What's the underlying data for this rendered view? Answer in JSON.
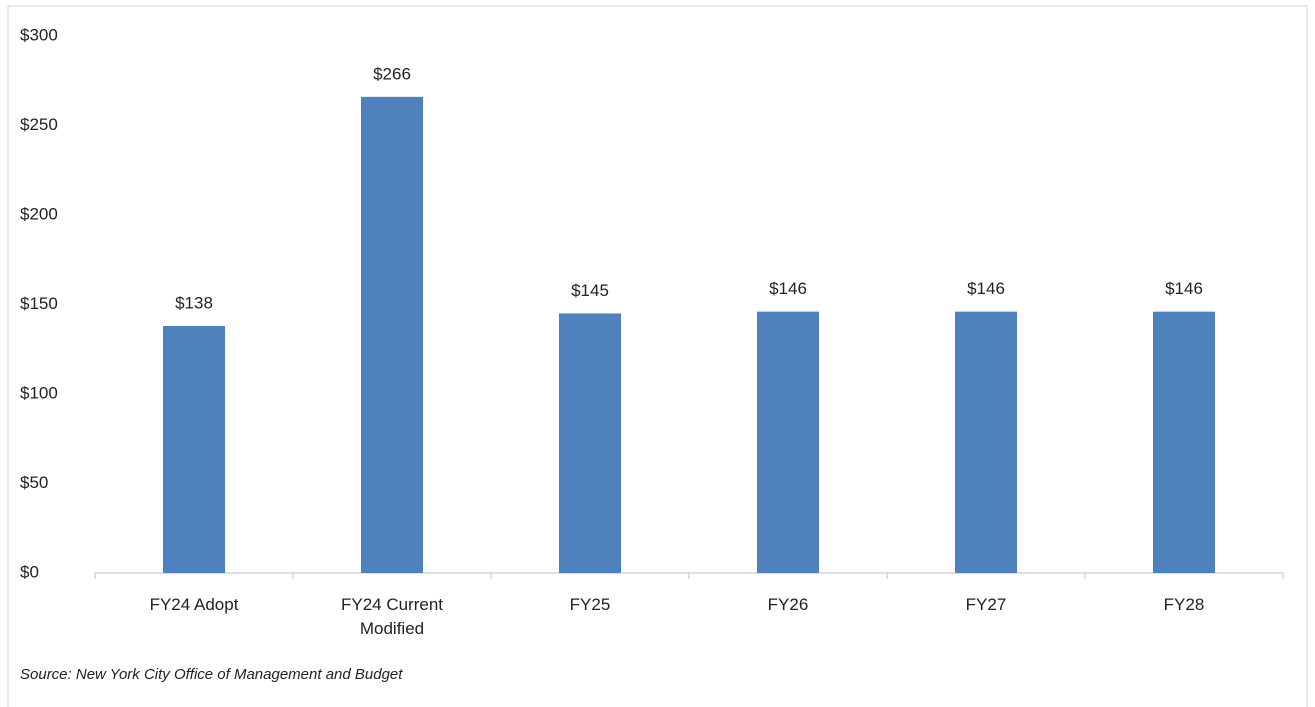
{
  "chart_data": {
    "type": "bar",
    "categories": [
      "FY24 Adopt",
      "FY24 Current Modified",
      "FY25",
      "FY26",
      "FY27",
      "FY28"
    ],
    "values": [
      138,
      266,
      145,
      146,
      146,
      146
    ],
    "value_labels": [
      "$138",
      "$266",
      "$145",
      "$146",
      "$146",
      "$146"
    ],
    "color": "#4f81bd",
    "ylim": [
      0,
      300
    ],
    "yticks": [
      {
        "value": 0,
        "label": "$0"
      },
      {
        "value": 50,
        "label": "$50"
      },
      {
        "value": 100,
        "label": "$100"
      },
      {
        "value": 150,
        "label": "$150"
      },
      {
        "value": 200,
        "label": "$200"
      },
      {
        "value": 250,
        "label": "$250"
      },
      {
        "value": 300,
        "label": "$300"
      }
    ],
    "grid": false,
    "source": "Source: New York City Office of Management and Budget"
  }
}
